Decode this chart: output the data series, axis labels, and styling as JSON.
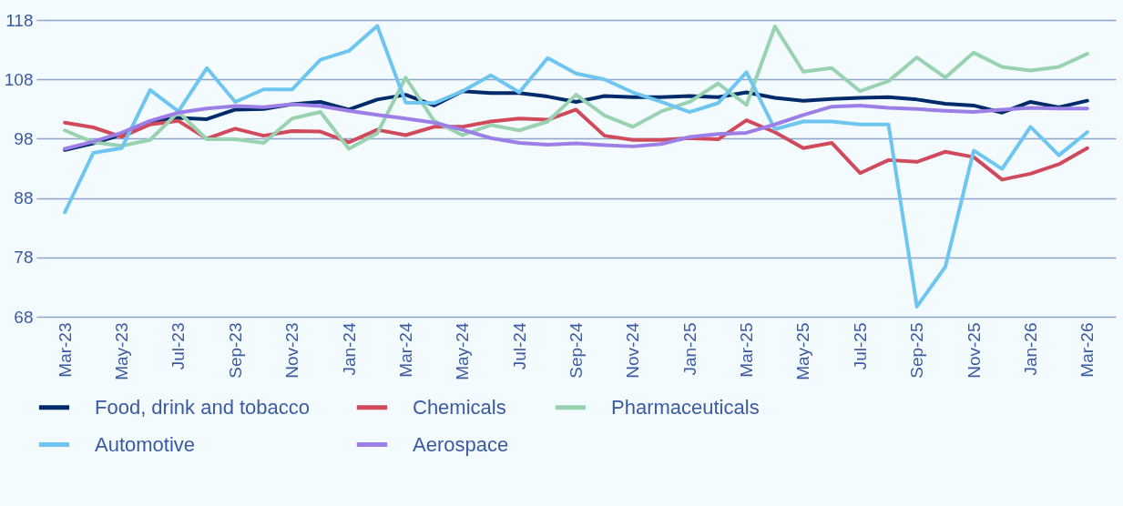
{
  "chart_data": {
    "type": "line",
    "categories": [
      "Mar-23",
      null,
      "May-23",
      null,
      "Jul-23",
      null,
      "Sep-23",
      null,
      "Nov-23",
      null,
      "Jan-24",
      null,
      "Mar-24",
      null,
      "May-24",
      null,
      "Jul-24",
      null,
      "Sep-24",
      null,
      "Nov-24",
      null,
      "Jan-25",
      null,
      "Mar-25",
      null,
      "May-25",
      null,
      "Jul-25",
      null,
      "Sep-25",
      null,
      "Nov-25",
      null,
      "Jan-26",
      null,
      "Mar-26"
    ],
    "series": [
      {
        "name": "Food, drink and tobacco",
        "color": "#002b6b",
        "values": [
          96.1,
          97.2,
          98.7,
          100.9,
          101.5,
          101.3,
          102.9,
          103.0,
          103.8,
          104.2,
          102.9,
          104.6,
          105.4,
          103.6,
          106.0,
          105.7,
          105.7,
          105.1,
          104.2,
          105.2,
          105.0,
          105.0,
          105.2,
          105.0,
          105.8,
          104.9,
          104.4,
          104.7,
          104.9,
          105.0,
          104.6,
          103.9,
          103.6,
          102.4,
          104.2,
          103.3,
          104.4
        ]
      },
      {
        "name": "Chemicals",
        "color": "#d04a5c",
        "values": [
          100.7,
          99.9,
          98.3,
          100.4,
          101.0,
          98.0,
          99.7,
          98.5,
          99.3,
          99.2,
          97.4,
          99.5,
          98.6,
          100.0,
          100.0,
          100.9,
          101.4,
          101.2,
          102.9,
          98.5,
          97.8,
          97.8,
          98.1,
          97.9,
          101.1,
          99.1,
          96.4,
          97.3,
          92.2,
          94.4,
          94.1,
          95.8,
          94.9,
          91.1,
          92.1,
          93.7,
          96.4
        ]
      },
      {
        "name": "Pharmaceuticals",
        "color": "#98d2b0",
        "values": [
          99.4,
          97.4,
          96.8,
          97.8,
          102.5,
          97.9,
          97.9,
          97.3,
          101.4,
          102.5,
          96.3,
          98.9,
          108.3,
          101.0,
          98.6,
          100.3,
          99.4,
          100.9,
          105.4,
          101.9,
          100.0,
          102.6,
          104.2,
          107.3,
          103.7,
          116.9,
          109.3,
          109.9,
          106.0,
          107.7,
          111.7,
          108.3,
          112.5,
          110.1,
          109.5,
          110.1,
          112.3
        ]
      },
      {
        "name": "Automotive",
        "color": "#6ec6f0",
        "values": [
          85.6,
          95.6,
          96.4,
          106.2,
          102.6,
          109.9,
          104.2,
          106.3,
          106.3,
          111.3,
          112.8,
          117.0,
          104.1,
          104.0,
          106.0,
          108.7,
          105.8,
          111.6,
          109.0,
          108.0,
          105.8,
          104.2,
          102.5,
          104.0,
          109.2,
          99.6,
          100.9,
          100.9,
          100.4,
          100.4,
          69.7,
          76.4,
          96.0,
          92.9,
          100.0,
          95.2,
          99.1
        ]
      },
      {
        "name": "Aerospace",
        "color": "#9b7fe6",
        "values": [
          96.3,
          97.5,
          99.0,
          101.0,
          102.4,
          103.1,
          103.5,
          103.3,
          103.8,
          103.5,
          102.7,
          102.0,
          101.4,
          100.7,
          99.5,
          98.1,
          97.3,
          97.0,
          97.2,
          96.9,
          96.7,
          97.1,
          98.3,
          98.8,
          99.0,
          100.4,
          102.0,
          103.4,
          103.6,
          103.2,
          103.0,
          102.7,
          102.5,
          102.9,
          103.2,
          103.1,
          103.1
        ]
      }
    ],
    "ylim": [
      68,
      118
    ],
    "yticks": [
      68,
      78,
      88,
      98,
      108,
      118
    ],
    "grid": "y",
    "legend": "bottom",
    "marker": "none",
    "line_style": "solid"
  }
}
